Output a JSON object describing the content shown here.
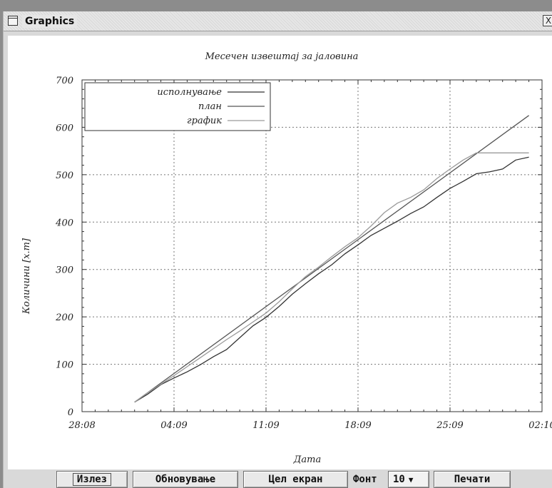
{
  "window": {
    "title": "Graphics",
    "close_label": "X"
  },
  "chart_data": {
    "type": "line",
    "title": "Месечен извештај за јаловина",
    "xlabel": "Дата",
    "ylabel": "Количини [х.m]",
    "x_ticks": [
      "28:08",
      "04:09",
      "11:09",
      "18:09",
      "25:09",
      "02:10"
    ],
    "y_ticks": [
      "0",
      "100",
      "200",
      "300",
      "400",
      "500",
      "600",
      "700"
    ],
    "ylim": [
      0,
      700
    ],
    "xlim": [
      "2023-08-28",
      "2023-10-02"
    ],
    "grid": true,
    "legend_position": "top-left",
    "series": [
      {
        "name": "исполнување",
        "color": "#333333",
        "points": [
          [
            "2023-09-01",
            20
          ],
          [
            "2023-09-02",
            37
          ],
          [
            "2023-09-03",
            57
          ],
          [
            "2023-09-04",
            71
          ],
          [
            "2023-09-05",
            84
          ],
          [
            "2023-09-06",
            99
          ],
          [
            "2023-09-07",
            116
          ],
          [
            "2023-09-08",
            131
          ],
          [
            "2023-09-09",
            156
          ],
          [
            "2023-09-10",
            181
          ],
          [
            "2023-09-11",
            199
          ],
          [
            "2023-09-12",
            222
          ],
          [
            "2023-09-13",
            248
          ],
          [
            "2023-09-14",
            270
          ],
          [
            "2023-09-15",
            291
          ],
          [
            "2023-09-16",
            310
          ],
          [
            "2023-09-17",
            333
          ],
          [
            "2023-09-18",
            352
          ],
          [
            "2023-09-19",
            372
          ],
          [
            "2023-09-20",
            387
          ],
          [
            "2023-09-21",
            402
          ],
          [
            "2023-09-22",
            418
          ],
          [
            "2023-09-23",
            432
          ],
          [
            "2023-09-24",
            452
          ],
          [
            "2023-09-25",
            471
          ],
          [
            "2023-09-26",
            486
          ],
          [
            "2023-09-27",
            502
          ],
          [
            "2023-09-28",
            506
          ],
          [
            "2023-09-29",
            512
          ],
          [
            "2023-09-30",
            531
          ],
          [
            "2023-10-01",
            537
          ]
        ]
      },
      {
        "name": "план",
        "color": "#555555",
        "points": [
          [
            "2023-09-01",
            20
          ],
          [
            "2023-10-01",
            625
          ]
        ]
      },
      {
        "name": "график",
        "color": "#9a9a9a",
        "points": [
          [
            "2023-09-01",
            20
          ],
          [
            "2023-09-02",
            40
          ],
          [
            "2023-09-03",
            58
          ],
          [
            "2023-09-04",
            76
          ],
          [
            "2023-09-05",
            95
          ],
          [
            "2023-09-06",
            114
          ],
          [
            "2023-09-07",
            133
          ],
          [
            "2023-09-08",
            152
          ],
          [
            "2023-09-09",
            170
          ],
          [
            "2023-09-10",
            189
          ],
          [
            "2023-09-11",
            208
          ],
          [
            "2023-09-12",
            232
          ],
          [
            "2023-09-13",
            259
          ],
          [
            "2023-09-14",
            285
          ],
          [
            "2023-09-15",
            305
          ],
          [
            "2023-09-16",
            327
          ],
          [
            "2023-09-17",
            348
          ],
          [
            "2023-09-18",
            367
          ],
          [
            "2023-09-19",
            392
          ],
          [
            "2023-09-20",
            420
          ],
          [
            "2023-09-21",
            440
          ],
          [
            "2023-09-22",
            452
          ],
          [
            "2023-09-23",
            468
          ],
          [
            "2023-09-24",
            492
          ],
          [
            "2023-09-25",
            512
          ],
          [
            "2023-09-26",
            531
          ],
          [
            "2023-09-27",
            546
          ],
          [
            "2023-09-28",
            546
          ],
          [
            "2023-09-29",
            546
          ],
          [
            "2023-09-30",
            546
          ],
          [
            "2023-10-01",
            546
          ]
        ]
      }
    ]
  },
  "toolbar": {
    "exit_label": "Излез",
    "refresh_label": "Обновување",
    "fullscreen_label": "Цел екран",
    "font_label": "Фонт",
    "font_size_value": "10",
    "print_label": "Печати"
  }
}
